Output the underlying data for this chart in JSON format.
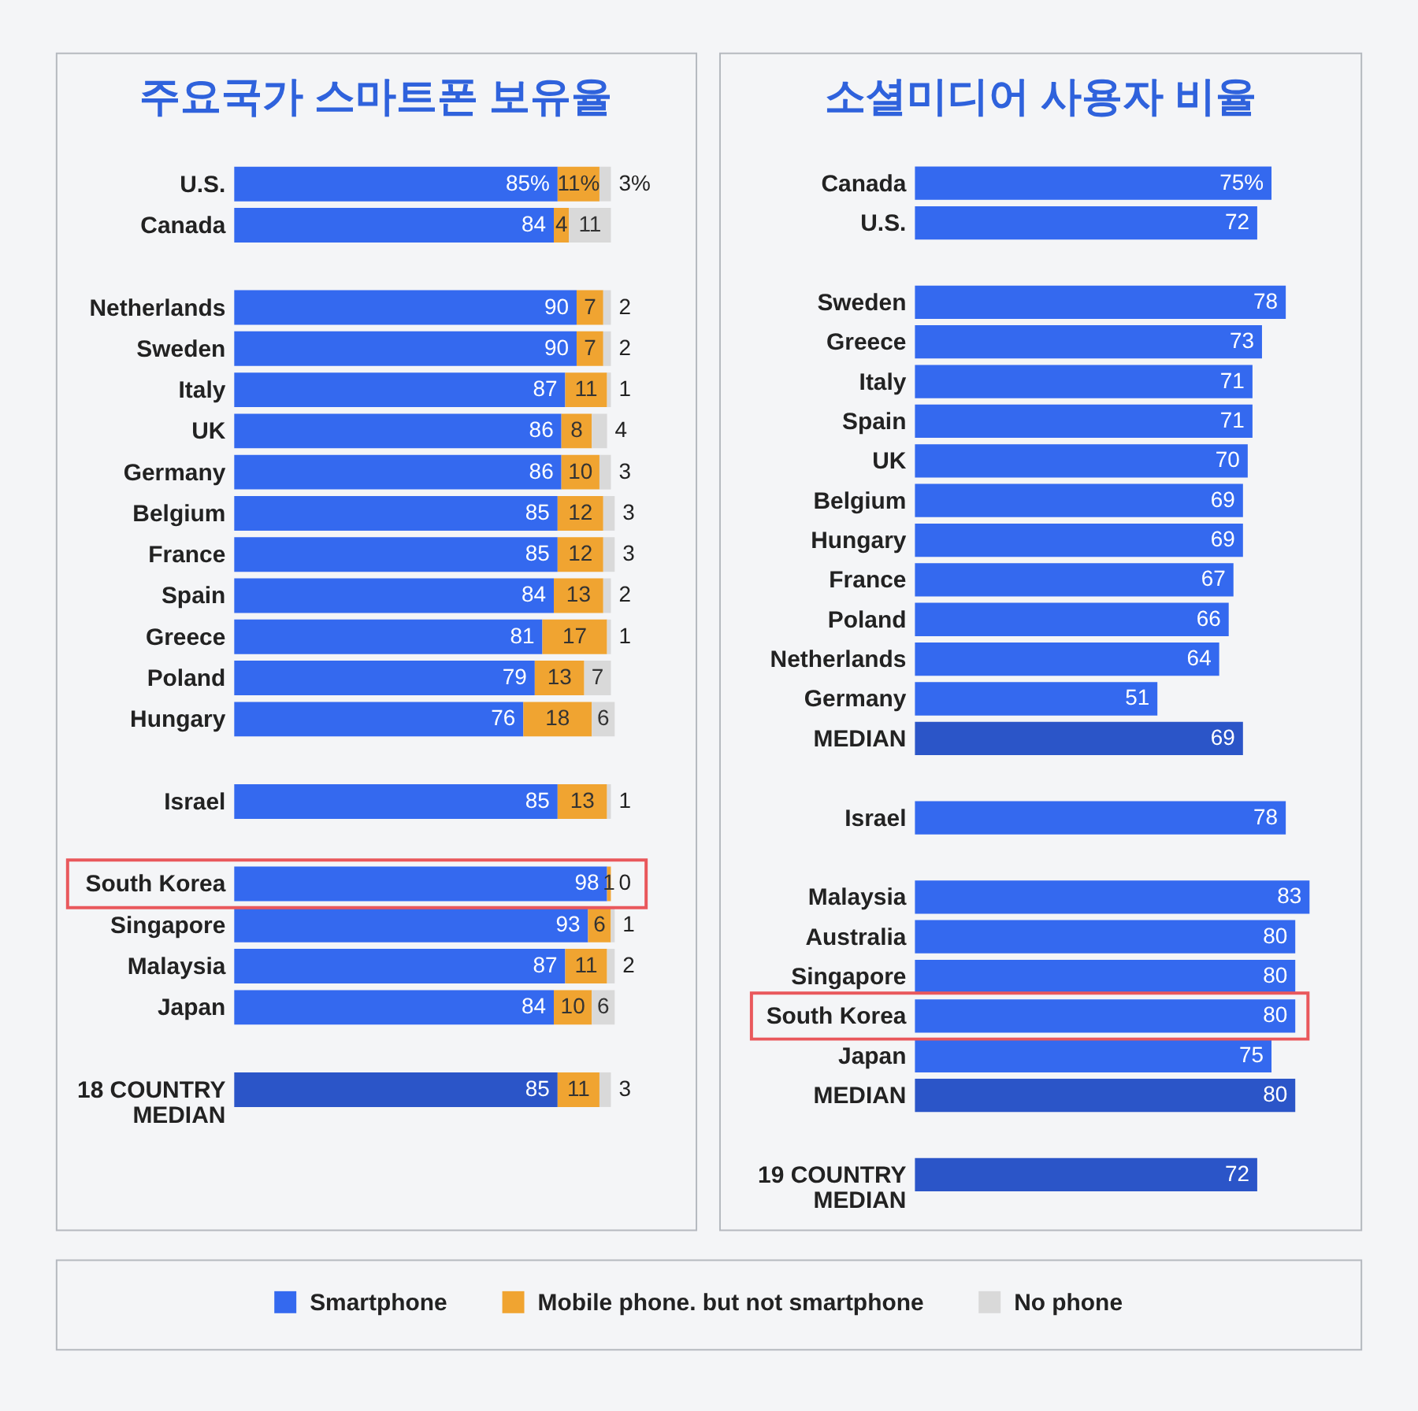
{
  "chart_data": [
    {
      "type": "bar",
      "orientation": "horizontal",
      "stacked": true,
      "title": "주요국가 스마트폰 보유율",
      "categories": [
        "U.S.",
        "Canada",
        null,
        "Netherlands",
        "Sweden",
        "Italy",
        "UK",
        "Germany",
        "Belgium",
        "France",
        "Spain",
        "Greece",
        "Poland",
        "Hungary",
        null,
        "Israel",
        null,
        "South Korea",
        "Singapore",
        "Malaysia",
        "Japan",
        null,
        "18 COUNTRY\nMEDIAN"
      ],
      "series": [
        {
          "name": "Smartphone",
          "color": "#3469ef",
          "colors": [
            "#3469ef",
            "#3469ef",
            null,
            "#3469ef",
            "#3469ef",
            "#3469ef",
            "#3469ef",
            "#3469ef",
            "#3469ef",
            "#3469ef",
            "#3469ef",
            "#3469ef",
            "#3469ef",
            "#3469ef",
            null,
            "#3469ef",
            null,
            "#3469ef",
            "#3469ef",
            "#3469ef",
            "#3469ef",
            null,
            "#2b55c8"
          ],
          "values": [
            85,
            84,
            null,
            90,
            90,
            87,
            86,
            86,
            85,
            85,
            84,
            81,
            79,
            76,
            null,
            85,
            null,
            98,
            93,
            87,
            84,
            null,
            85
          ],
          "value_labels": [
            "85%",
            "84",
            null,
            "90",
            "90",
            "87",
            "86",
            "86",
            "85",
            "85",
            "84",
            "81",
            "79",
            "76",
            null,
            "85",
            null,
            "98",
            "93",
            "87",
            "84",
            null,
            "85"
          ]
        },
        {
          "name": "Mobile phone. but not smartphone",
          "color": "#f0a431",
          "values": [
            11,
            4,
            null,
            7,
            7,
            11,
            8,
            10,
            12,
            12,
            13,
            17,
            13,
            18,
            null,
            13,
            null,
            1,
            6,
            11,
            10,
            null,
            11
          ],
          "value_labels": [
            "11%",
            "4",
            null,
            "7",
            "7",
            "11",
            "8",
            "10",
            "12",
            "12",
            "13",
            "17",
            "13",
            "18",
            null,
            "13",
            null,
            "1",
            "6",
            "11",
            "10",
            null,
            "11"
          ]
        },
        {
          "name": "No phone",
          "color": "#d9d9d9",
          "values": [
            3,
            11,
            null,
            2,
            2,
            1,
            4,
            3,
            3,
            3,
            2,
            1,
            7,
            6,
            null,
            1,
            null,
            0,
            1,
            2,
            6,
            null,
            3
          ],
          "value_labels": [
            "3%",
            "11",
            null,
            "2",
            "2",
            "1",
            "4",
            "3",
            "3",
            "3",
            "2",
            "1",
            "7",
            "6",
            null,
            "1",
            null,
            "0",
            "1",
            "2",
            "6",
            null,
            "3"
          ]
        }
      ],
      "tick_labels": "y",
      "legend": "bottom"
    },
    {
      "type": "bar",
      "orientation": "horizontal",
      "title": "소셜미디어 사용자 비율",
      "categories": [
        "Canada",
        "U.S.",
        null,
        "Sweden",
        "Greece",
        "Italy",
        "Spain",
        "UK",
        "Belgium",
        "Hungary",
        "France",
        "Poland",
        "Netherlands",
        "Germany",
        "MEDIAN",
        null,
        "Israel",
        null,
        "Malaysia",
        "Australia",
        "Singapore",
        "South Korea",
        "Japan",
        "MEDIAN",
        null,
        "19 COUNTRY\nMEDIAN"
      ],
      "values": [
        75,
        72,
        null,
        78,
        73,
        71,
        71,
        70,
        69,
        69,
        67,
        66,
        64,
        51,
        69,
        null,
        78,
        null,
        83,
        80,
        80,
        80,
        75,
        80,
        null,
        72
      ],
      "colors": [
        "#3469ef",
        "#3469ef",
        null,
        "#3469ef",
        "#3469ef",
        "#3469ef",
        "#3469ef",
        "#3469ef",
        "#3469ef",
        "#3469ef",
        "#3469ef",
        "#3469ef",
        "#3469ef",
        "#3469ef",
        "#2b55c8",
        null,
        "#3469ef",
        null,
        "#3469ef",
        "#3469ef",
        "#3469ef",
        "#3469ef",
        "#3469ef",
        "#2b55c8",
        null,
        "#2b55c8"
      ],
      "value_labels": [
        "75%",
        "72",
        null,
        "78",
        "73",
        "71",
        "71",
        "70",
        "69",
        "69",
        "67",
        "66",
        "64",
        "51",
        "69",
        null,
        "78",
        null,
        "83",
        "80",
        "80",
        "80",
        "75",
        "80",
        null,
        "72"
      ],
      "tick_labels": "y"
    }
  ]
}
